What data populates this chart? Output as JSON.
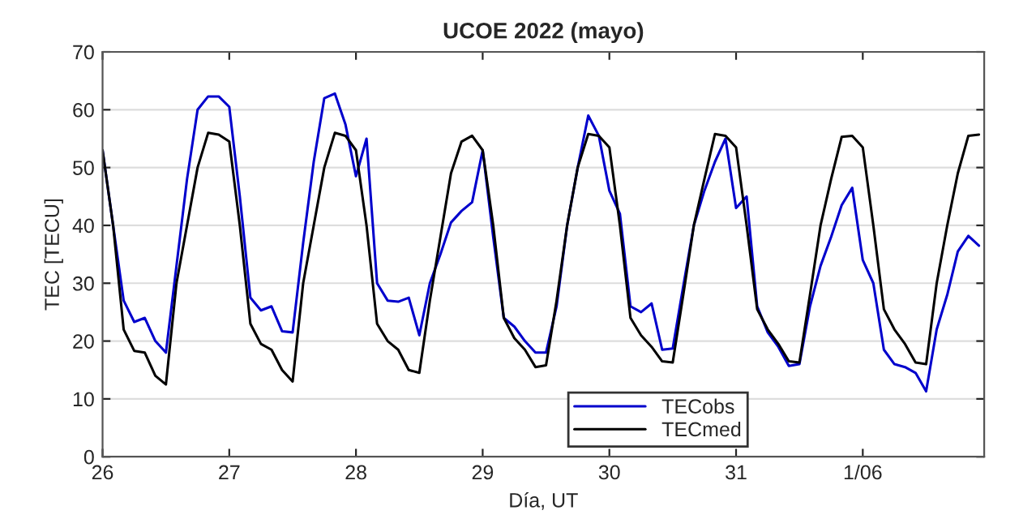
{
  "chart_data": {
    "type": "line",
    "title": "UCOE 2022 (mayo)",
    "xlabel": "Día, UT",
    "ylabel": "TEC [TECU]",
    "x": [
      "2022-05-26T00:00",
      "2022-05-26T02:00",
      "2022-05-26T04:00",
      "2022-05-26T06:00",
      "2022-05-26T08:00",
      "2022-05-26T10:00",
      "2022-05-26T12:00",
      "2022-05-26T14:00",
      "2022-05-26T16:00",
      "2022-05-26T18:00",
      "2022-05-26T20:00",
      "2022-05-26T22:00",
      "2022-05-27T00:00",
      "2022-05-27T02:00",
      "2022-05-27T04:00",
      "2022-05-27T06:00",
      "2022-05-27T08:00",
      "2022-05-27T10:00",
      "2022-05-27T12:00",
      "2022-05-27T14:00",
      "2022-05-27T16:00",
      "2022-05-27T18:00",
      "2022-05-27T20:00",
      "2022-05-27T22:00",
      "2022-05-28T00:00",
      "2022-05-28T02:00",
      "2022-05-28T04:00",
      "2022-05-28T06:00",
      "2022-05-28T08:00",
      "2022-05-28T10:00",
      "2022-05-28T12:00",
      "2022-05-28T14:00",
      "2022-05-28T16:00",
      "2022-05-28T18:00",
      "2022-05-28T20:00",
      "2022-05-28T22:00",
      "2022-05-29T00:00",
      "2022-05-29T02:00",
      "2022-05-29T04:00",
      "2022-05-29T06:00",
      "2022-05-29T08:00",
      "2022-05-29T10:00",
      "2022-05-29T12:00",
      "2022-05-29T14:00",
      "2022-05-29T16:00",
      "2022-05-29T18:00",
      "2022-05-29T20:00",
      "2022-05-29T22:00",
      "2022-05-30T00:00",
      "2022-05-30T02:00",
      "2022-05-30T04:00",
      "2022-05-30T06:00",
      "2022-05-30T08:00",
      "2022-05-30T10:00",
      "2022-05-30T12:00",
      "2022-05-30T14:00",
      "2022-05-30T16:00",
      "2022-05-30T18:00",
      "2022-05-30T20:00",
      "2022-05-30T22:00",
      "2022-05-31T00:00",
      "2022-05-31T02:00",
      "2022-05-31T04:00",
      "2022-05-31T06:00",
      "2022-05-31T08:00",
      "2022-05-31T10:00",
      "2022-05-31T12:00",
      "2022-05-31T14:00",
      "2022-05-31T16:00",
      "2022-05-31T18:00",
      "2022-05-31T20:00",
      "2022-05-31T22:00",
      "2022-06-01T00:00",
      "2022-06-01T02:00",
      "2022-06-01T04:00",
      "2022-06-01T06:00",
      "2022-06-01T08:00",
      "2022-06-01T10:00",
      "2022-06-01T12:00",
      "2022-06-01T14:00",
      "2022-06-01T16:00",
      "2022-06-01T18:00",
      "2022-06-01T20:00",
      "2022-06-01T22:00"
    ],
    "series": [
      {
        "name": "TECobs",
        "color": "#0000cc",
        "values": [
          53,
          40,
          27,
          23.3,
          24,
          20,
          18,
          33,
          48,
          60,
          62.3,
          62.3,
          60.5,
          45,
          27.5,
          25.3,
          26,
          21.7,
          21.5,
          37,
          51,
          62,
          62.8,
          57.5,
          48.5,
          55,
          30,
          27,
          26.8,
          27.5,
          21,
          30,
          35,
          40.5,
          42.5,
          44,
          53,
          38,
          24,
          22.5,
          20,
          18,
          18,
          26,
          40,
          50,
          59,
          55.5,
          46,
          42,
          26,
          25,
          26.5,
          18.5,
          18.7,
          29.5,
          40,
          46,
          51,
          55,
          43,
          45,
          26,
          21.5,
          19,
          15.7,
          16,
          26,
          33,
          38,
          43.5,
          46.5,
          34,
          30,
          18.5,
          16,
          15.5,
          14.5,
          11.3,
          22,
          28,
          35.5,
          38.2,
          36.5
        ]
      },
      {
        "name": "TECmed",
        "color": "#000000",
        "values": [
          53,
          40,
          22,
          18.3,
          18,
          14,
          12.5,
          30,
          40,
          50,
          56,
          55.7,
          54.5,
          40,
          23,
          19.5,
          18.5,
          15,
          13,
          30,
          40,
          50,
          56,
          55.5,
          53,
          40,
          23,
          20,
          18.5,
          15,
          14.5,
          27,
          38,
          49,
          54.5,
          55.5,
          53,
          40,
          24,
          20.5,
          18.5,
          15.5,
          15.8,
          27,
          40,
          50,
          55.8,
          55.5,
          53.5,
          40,
          24,
          21,
          19,
          16.5,
          16.3,
          28,
          40,
          48,
          55.8,
          55.5,
          53.5,
          40,
          25.5,
          22,
          19.5,
          16.5,
          16.3,
          28,
          40,
          48,
          55.3,
          55.5,
          53.5,
          40,
          25.5,
          22,
          19.5,
          16.3,
          16,
          30,
          40,
          49,
          55.5,
          55.7
        ]
      }
    ],
    "xlim": [
      "2022-05-26T00:00",
      "2022-06-01T23:00"
    ],
    "xticks": [
      {
        "value": "2022-05-26",
        "label": "26"
      },
      {
        "value": "2022-05-27",
        "label": "27"
      },
      {
        "value": "2022-05-28",
        "label": "28"
      },
      {
        "value": "2022-05-29",
        "label": "29"
      },
      {
        "value": "2022-05-30",
        "label": "30"
      },
      {
        "value": "2022-05-31",
        "label": "31"
      },
      {
        "value": "2022-06-01",
        "label": "1/06"
      }
    ],
    "ylim": [
      0,
      70
    ],
    "yticks": [
      0,
      10,
      20,
      30,
      40,
      50,
      60,
      70
    ],
    "grid": "y",
    "legend": "bottom",
    "marker": "none",
    "line_style": "solid"
  }
}
